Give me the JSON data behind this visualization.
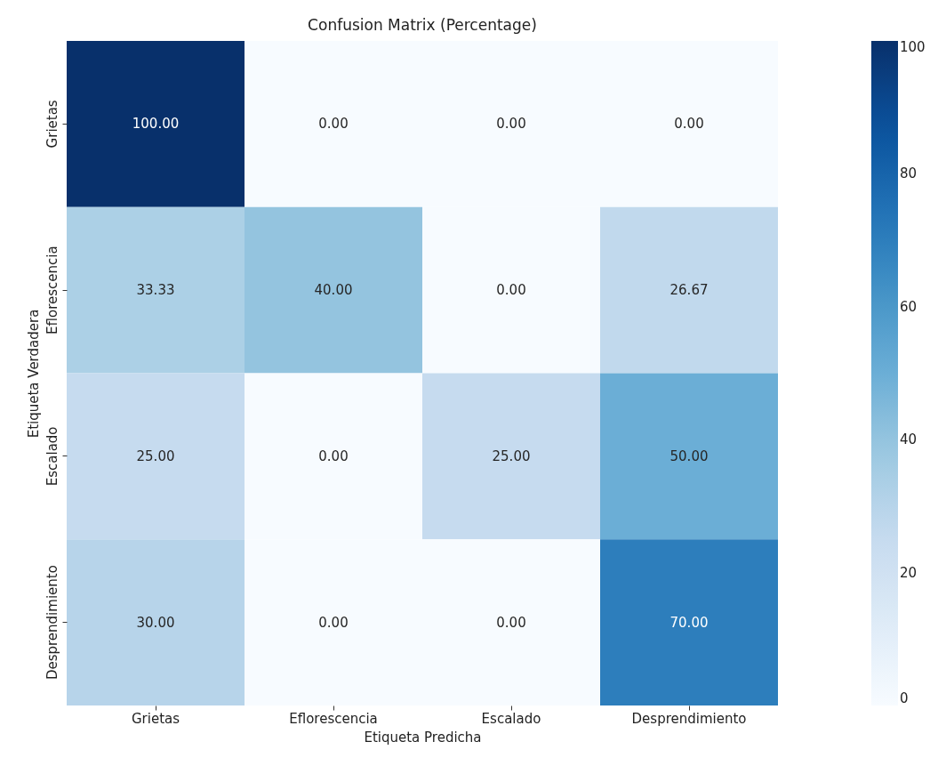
{
  "chart_data": {
    "type": "heatmap",
    "title": "Confusion Matrix (Percentage)",
    "xlabel": "Etiqueta Predicha",
    "ylabel": "Etiqueta Verdadera",
    "categories": [
      "Grietas",
      "Eflorescencia",
      "Escalado",
      "Desprendimiento"
    ],
    "y_categories": [
      "Grietas",
      "Eflorescencia",
      "Escalado",
      "Desprendimiento"
    ],
    "cells": [
      [
        100,
        0,
        0,
        0
      ],
      [
        33.33,
        40,
        0,
        26.67
      ],
      [
        25,
        0,
        25,
        50
      ],
      [
        30,
        0,
        0,
        70
      ]
    ],
    "cell_labels": [
      [
        "100.00",
        "0.00",
        "0.00",
        "0.00"
      ],
      [
        "33.33",
        "40.00",
        "0.00",
        "26.67"
      ],
      [
        "25.00",
        "0.00",
        "25.00",
        "50.00"
      ],
      [
        "30.00",
        "0.00",
        "0.00",
        "70.00"
      ]
    ],
    "clim": [
      0,
      100
    ],
    "cticks": [
      0,
      20,
      40,
      60,
      80,
      100
    ]
  }
}
